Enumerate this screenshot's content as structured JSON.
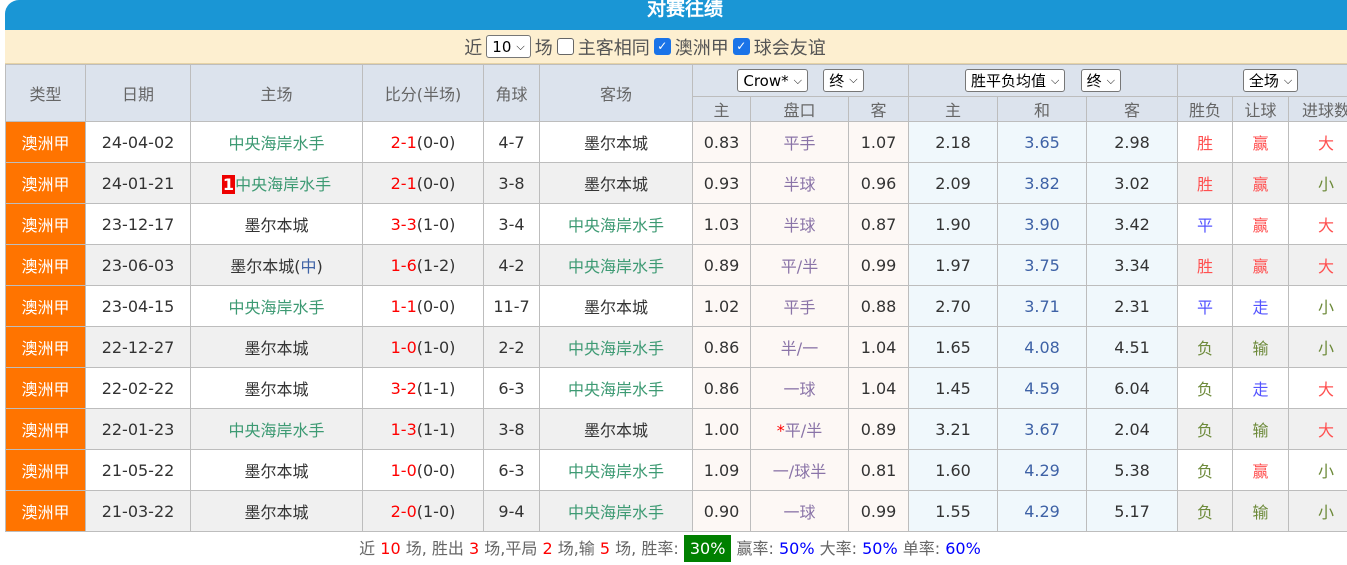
{
  "title": "对赛往绩",
  "filter": {
    "near": "近",
    "count": "10",
    "unit": "场",
    "same_home_away": "主客相同",
    "same_home_away_checked": false,
    "league1": "澳洲甲",
    "league1_checked": true,
    "league2": "球会友谊",
    "league2_checked": true
  },
  "headers": {
    "type": "类型",
    "date": "日期",
    "home": "主场",
    "score": "比分(半场)",
    "corner": "角球",
    "away": "客场",
    "company": "Crow*",
    "ah_stage": "终",
    "eu_type": "胜平负均值",
    "eu_stage": "终",
    "scope": "全场",
    "ah_home": "主",
    "ah_line": "盘口",
    "ah_away": "客",
    "eu_home": "主",
    "eu_draw": "和",
    "eu_away": "客",
    "wl": "胜负",
    "hc": "让球",
    "ou": "进球数"
  },
  "rows": [
    {
      "type": "澳洲甲",
      "date": "24-04-02",
      "home": "中央海岸水手",
      "home_rank": "",
      "home_note": "",
      "score": "2-1",
      "half": "(0-0)",
      "corner": "4-7",
      "away": "墨尔本城",
      "ah_h": "0.83",
      "ah_star": "",
      "ah_l": "平手",
      "ah_a": "1.07",
      "eu_h": "2.18",
      "eu_d": "3.65",
      "eu_a": "2.98",
      "wl": "胜",
      "hc": "赢",
      "ou": "大"
    },
    {
      "type": "澳洲甲",
      "date": "24-01-21",
      "home": "中央海岸水手",
      "home_rank": "1",
      "home_note": "",
      "score": "2-1",
      "half": "(0-0)",
      "corner": "3-8",
      "away": "墨尔本城",
      "ah_h": "0.93",
      "ah_star": "",
      "ah_l": "半球",
      "ah_a": "0.96",
      "eu_h": "2.09",
      "eu_d": "3.82",
      "eu_a": "3.02",
      "wl": "胜",
      "hc": "赢",
      "ou": "小"
    },
    {
      "type": "澳洲甲",
      "date": "23-12-17",
      "home": "墨尔本城",
      "home_rank": "",
      "home_note": "",
      "score": "3-3",
      "half": "(1-0)",
      "corner": "3-4",
      "away": "中央海岸水手",
      "ah_h": "1.03",
      "ah_star": "",
      "ah_l": "半球",
      "ah_a": "0.87",
      "eu_h": "1.90",
      "eu_d": "3.90",
      "eu_a": "3.42",
      "wl": "平",
      "hc": "赢",
      "ou": "大"
    },
    {
      "type": "澳洲甲",
      "date": "23-06-03",
      "home": "墨尔本城",
      "home_rank": "",
      "home_note": "中",
      "score": "1-6",
      "half": "(1-2)",
      "corner": "4-2",
      "away": "中央海岸水手",
      "ah_h": "0.89",
      "ah_star": "",
      "ah_l": "平/半",
      "ah_a": "0.99",
      "eu_h": "1.97",
      "eu_d": "3.75",
      "eu_a": "3.34",
      "wl": "胜",
      "hc": "赢",
      "ou": "大"
    },
    {
      "type": "澳洲甲",
      "date": "23-04-15",
      "home": "中央海岸水手",
      "home_rank": "",
      "home_note": "",
      "score": "1-1",
      "half": "(0-0)",
      "corner": "11-7",
      "away": "墨尔本城",
      "ah_h": "1.02",
      "ah_star": "",
      "ah_l": "平手",
      "ah_a": "0.88",
      "eu_h": "2.70",
      "eu_d": "3.71",
      "eu_a": "2.31",
      "wl": "平",
      "hc": "走",
      "ou": "小"
    },
    {
      "type": "澳洲甲",
      "date": "22-12-27",
      "home": "墨尔本城",
      "home_rank": "",
      "home_note": "",
      "score": "1-0",
      "half": "(1-0)",
      "corner": "2-2",
      "away": "中央海岸水手",
      "ah_h": "0.86",
      "ah_star": "",
      "ah_l": "半/一",
      "ah_a": "1.04",
      "eu_h": "1.65",
      "eu_d": "4.08",
      "eu_a": "4.51",
      "wl": "负",
      "hc": "输",
      "ou": "小"
    },
    {
      "type": "澳洲甲",
      "date": "22-02-22",
      "home": "墨尔本城",
      "home_rank": "",
      "home_note": "",
      "score": "3-2",
      "half": "(1-1)",
      "corner": "6-3",
      "away": "中央海岸水手",
      "ah_h": "0.86",
      "ah_star": "",
      "ah_l": "一球",
      "ah_a": "1.04",
      "eu_h": "1.45",
      "eu_d": "4.59",
      "eu_a": "6.04",
      "wl": "负",
      "hc": "走",
      "ou": "大"
    },
    {
      "type": "澳洲甲",
      "date": "22-01-23",
      "home": "中央海岸水手",
      "home_rank": "",
      "home_note": "",
      "score": "1-3",
      "half": "(1-1)",
      "corner": "3-8",
      "away": "墨尔本城",
      "ah_h": "1.00",
      "ah_star": "*",
      "ah_l": "平/半",
      "ah_a": "0.89",
      "eu_h": "3.21",
      "eu_d": "3.67",
      "eu_a": "2.04",
      "wl": "负",
      "hc": "输",
      "ou": "大"
    },
    {
      "type": "澳洲甲",
      "date": "21-05-22",
      "home": "墨尔本城",
      "home_rank": "",
      "home_note": "",
      "score": "1-0",
      "half": "(0-0)",
      "corner": "6-3",
      "away": "中央海岸水手",
      "ah_h": "1.09",
      "ah_star": "",
      "ah_l": "一/球半",
      "ah_a": "0.81",
      "eu_h": "1.60",
      "eu_d": "4.29",
      "eu_a": "5.38",
      "wl": "负",
      "hc": "赢",
      "ou": "小"
    },
    {
      "type": "澳洲甲",
      "date": "21-03-22",
      "home": "墨尔本城",
      "home_rank": "",
      "home_note": "",
      "score": "2-0",
      "half": "(1-0)",
      "corner": "9-4",
      "away": "中央海岸水手",
      "ah_h": "0.90",
      "ah_star": "",
      "ah_l": "一球",
      "ah_a": "0.99",
      "eu_h": "1.55",
      "eu_d": "4.29",
      "eu_a": "5.17",
      "wl": "负",
      "hc": "输",
      "ou": "小"
    }
  ],
  "footer": {
    "t1": "近 ",
    "n": "10",
    "t2": " 场, 胜出 ",
    "w": "3",
    "t3": " 场,平局 ",
    "d": "2",
    "t4": " 场,输 ",
    "l": "5",
    "t5": " 场, 胜率: ",
    "win_rate": "30%",
    "t6": " 赢率: ",
    "hc_rate": "50%",
    "t7": " 大率: ",
    "over_rate": "50%",
    "t8": " 单率: ",
    "odd_rate": "60%"
  },
  "colors": {
    "title_bar": "#1a96d5",
    "type_badge": "#ff7400",
    "win_rate_badge": "#008000",
    "focus_team": "#3d9a73"
  }
}
